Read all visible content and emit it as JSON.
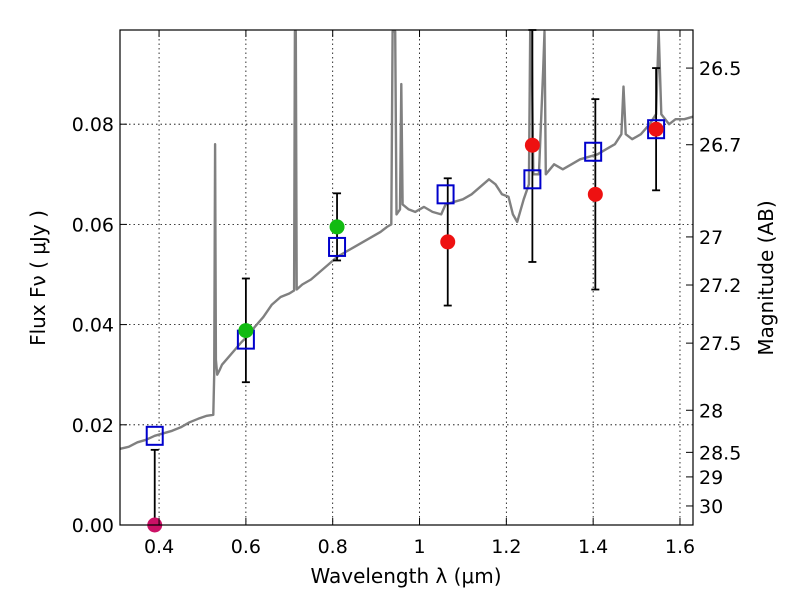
{
  "chart_data": {
    "type": "scatter",
    "xlabel": "Wavelength  λ (μm)",
    "ylabel": "Flux  Fν  ( μJy )",
    "ylabel_right": "Magnitude (AB)",
    "xlim": [
      0.31,
      1.63
    ],
    "ylim": [
      0.0,
      0.0988
    ],
    "x_ticks": [
      0.4,
      0.6,
      0.8,
      1.0,
      1.2,
      1.4,
      1.6
    ],
    "x_tick_labels": [
      "0.4",
      "0.6",
      "0.8",
      "1",
      "1.2",
      "1.4",
      "1.6"
    ],
    "y_ticks": [
      0.0,
      0.02,
      0.04,
      0.06,
      0.08
    ],
    "y_tick_labels": [
      "0.00",
      "0.02",
      "0.04",
      "0.06",
      "0.08"
    ],
    "mag_ticks": [
      {
        "label": "26.5",
        "flux": 0.0912
      },
      {
        "label": "26.7",
        "flux": 0.0759
      },
      {
        "label": "27",
        "flux": 0.0575
      },
      {
        "label": "27.2",
        "flux": 0.0479
      },
      {
        "label": "27.5",
        "flux": 0.0363
      },
      {
        "label": "28",
        "flux": 0.0229
      },
      {
        "label": "28.5",
        "flux": 0.0145
      },
      {
        "label": "29",
        "flux": 0.0096
      },
      {
        "label": "30",
        "flux": 0.0038
      }
    ],
    "grid": true,
    "series": [
      {
        "name": "model_spectrum",
        "kind": "line",
        "color": "#808080",
        "points": [
          [
            0.31,
            0.0152
          ],
          [
            0.33,
            0.0156
          ],
          [
            0.35,
            0.0165
          ],
          [
            0.37,
            0.017
          ],
          [
            0.39,
            0.0178
          ],
          [
            0.41,
            0.0183
          ],
          [
            0.43,
            0.0188
          ],
          [
            0.45,
            0.0195
          ],
          [
            0.47,
            0.0205
          ],
          [
            0.49,
            0.0212
          ],
          [
            0.51,
            0.0218
          ],
          [
            0.525,
            0.022
          ],
          [
            0.527,
            0.03
          ],
          [
            0.529,
            0.076
          ],
          [
            0.531,
            0.033
          ],
          [
            0.534,
            0.03
          ],
          [
            0.54,
            0.031
          ],
          [
            0.545,
            0.032
          ],
          [
            0.56,
            0.0335
          ],
          [
            0.575,
            0.035
          ],
          [
            0.59,
            0.0365
          ],
          [
            0.605,
            0.0378
          ],
          [
            0.62,
            0.0395
          ],
          [
            0.64,
            0.0415
          ],
          [
            0.66,
            0.044
          ],
          [
            0.68,
            0.0455
          ],
          [
            0.7,
            0.0462
          ],
          [
            0.711,
            0.0468
          ],
          [
            0.713,
            0.0985
          ],
          [
            0.715,
            0.0985
          ],
          [
            0.717,
            0.047
          ],
          [
            0.73,
            0.048
          ],
          [
            0.75,
            0.049
          ],
          [
            0.77,
            0.0505
          ],
          [
            0.79,
            0.052
          ],
          [
            0.81,
            0.0535
          ],
          [
            0.83,
            0.0545
          ],
          [
            0.85,
            0.0555
          ],
          [
            0.87,
            0.0565
          ],
          [
            0.89,
            0.0575
          ],
          [
            0.91,
            0.0585
          ],
          [
            0.925,
            0.0595
          ],
          [
            0.935,
            0.06
          ],
          [
            0.938,
            0.0985
          ],
          [
            0.944,
            0.0985
          ],
          [
            0.947,
            0.062
          ],
          [
            0.955,
            0.063
          ],
          [
            0.958,
            0.088
          ],
          [
            0.961,
            0.064
          ],
          [
            0.975,
            0.063
          ],
          [
            0.99,
            0.0625
          ],
          [
            1.01,
            0.0635
          ],
          [
            1.03,
            0.0625
          ],
          [
            1.05,
            0.062
          ],
          [
            1.06,
            0.064
          ],
          [
            1.08,
            0.0645
          ],
          [
            1.1,
            0.065
          ],
          [
            1.12,
            0.066
          ],
          [
            1.14,
            0.0675
          ],
          [
            1.16,
            0.069
          ],
          [
            1.175,
            0.068
          ],
          [
            1.19,
            0.066
          ],
          [
            1.205,
            0.0655
          ],
          [
            1.215,
            0.062
          ],
          [
            1.225,
            0.0605
          ],
          [
            1.24,
            0.065
          ],
          [
            1.252,
            0.068
          ],
          [
            1.255,
            0.0985
          ],
          [
            1.258,
            0.0985
          ],
          [
            1.262,
            0.07
          ],
          [
            1.275,
            0.07
          ],
          [
            1.285,
            0.091
          ],
          [
            1.288,
            0.0985
          ],
          [
            1.291,
            0.07
          ],
          [
            1.31,
            0.072
          ],
          [
            1.33,
            0.071
          ],
          [
            1.35,
            0.072
          ],
          [
            1.37,
            0.073
          ],
          [
            1.39,
            0.0735
          ],
          [
            1.41,
            0.074
          ],
          [
            1.43,
            0.075
          ],
          [
            1.45,
            0.076
          ],
          [
            1.465,
            0.078
          ],
          [
            1.47,
            0.0875
          ],
          [
            1.475,
            0.078
          ],
          [
            1.49,
            0.077
          ],
          [
            1.51,
            0.078
          ],
          [
            1.53,
            0.08
          ],
          [
            1.545,
            0.082
          ],
          [
            1.551,
            0.0985
          ],
          [
            1.557,
            0.082
          ],
          [
            1.575,
            0.08
          ],
          [
            1.59,
            0.081
          ],
          [
            1.61,
            0.081
          ],
          [
            1.63,
            0.0815
          ]
        ]
      },
      {
        "name": "model_photometry",
        "kind": "open-square",
        "color": "#0000cc",
        "points": [
          [
            0.39,
            0.0178
          ],
          [
            0.6,
            0.037
          ],
          [
            0.81,
            0.0555
          ],
          [
            1.06,
            0.066
          ],
          [
            1.26,
            0.069
          ],
          [
            1.4,
            0.0745
          ],
          [
            1.545,
            0.079
          ]
        ]
      },
      {
        "name": "detections",
        "kind": "filled-circle",
        "color": "#11bb11",
        "points": [
          [
            0.6,
            0.0388
          ],
          [
            0.81,
            0.0595
          ]
        ]
      },
      {
        "name": "low_significance",
        "kind": "filled-circle",
        "color": "#ee1111",
        "points": [
          [
            1.065,
            0.0565
          ],
          [
            1.26,
            0.0758
          ],
          [
            1.405,
            0.066
          ],
          [
            1.545,
            0.079
          ]
        ]
      },
      {
        "name": "non_detection",
        "kind": "filled-circle",
        "color": "#cc1166",
        "points": [
          [
            0.39,
            0.0
          ]
        ]
      },
      {
        "name": "observed_errorbars",
        "kind": "errorbar",
        "color": "#000000",
        "points": [
          [
            0.39,
            0.0,
            0.015
          ],
          [
            0.6,
            0.0285,
            0.0492
          ],
          [
            0.81,
            0.0528,
            0.0662
          ],
          [
            1.065,
            0.0438,
            0.0692
          ],
          [
            1.26,
            0.0525,
            0.0988
          ],
          [
            1.405,
            0.047,
            0.085
          ],
          [
            1.545,
            0.0668,
            0.0912
          ]
        ]
      }
    ]
  }
}
